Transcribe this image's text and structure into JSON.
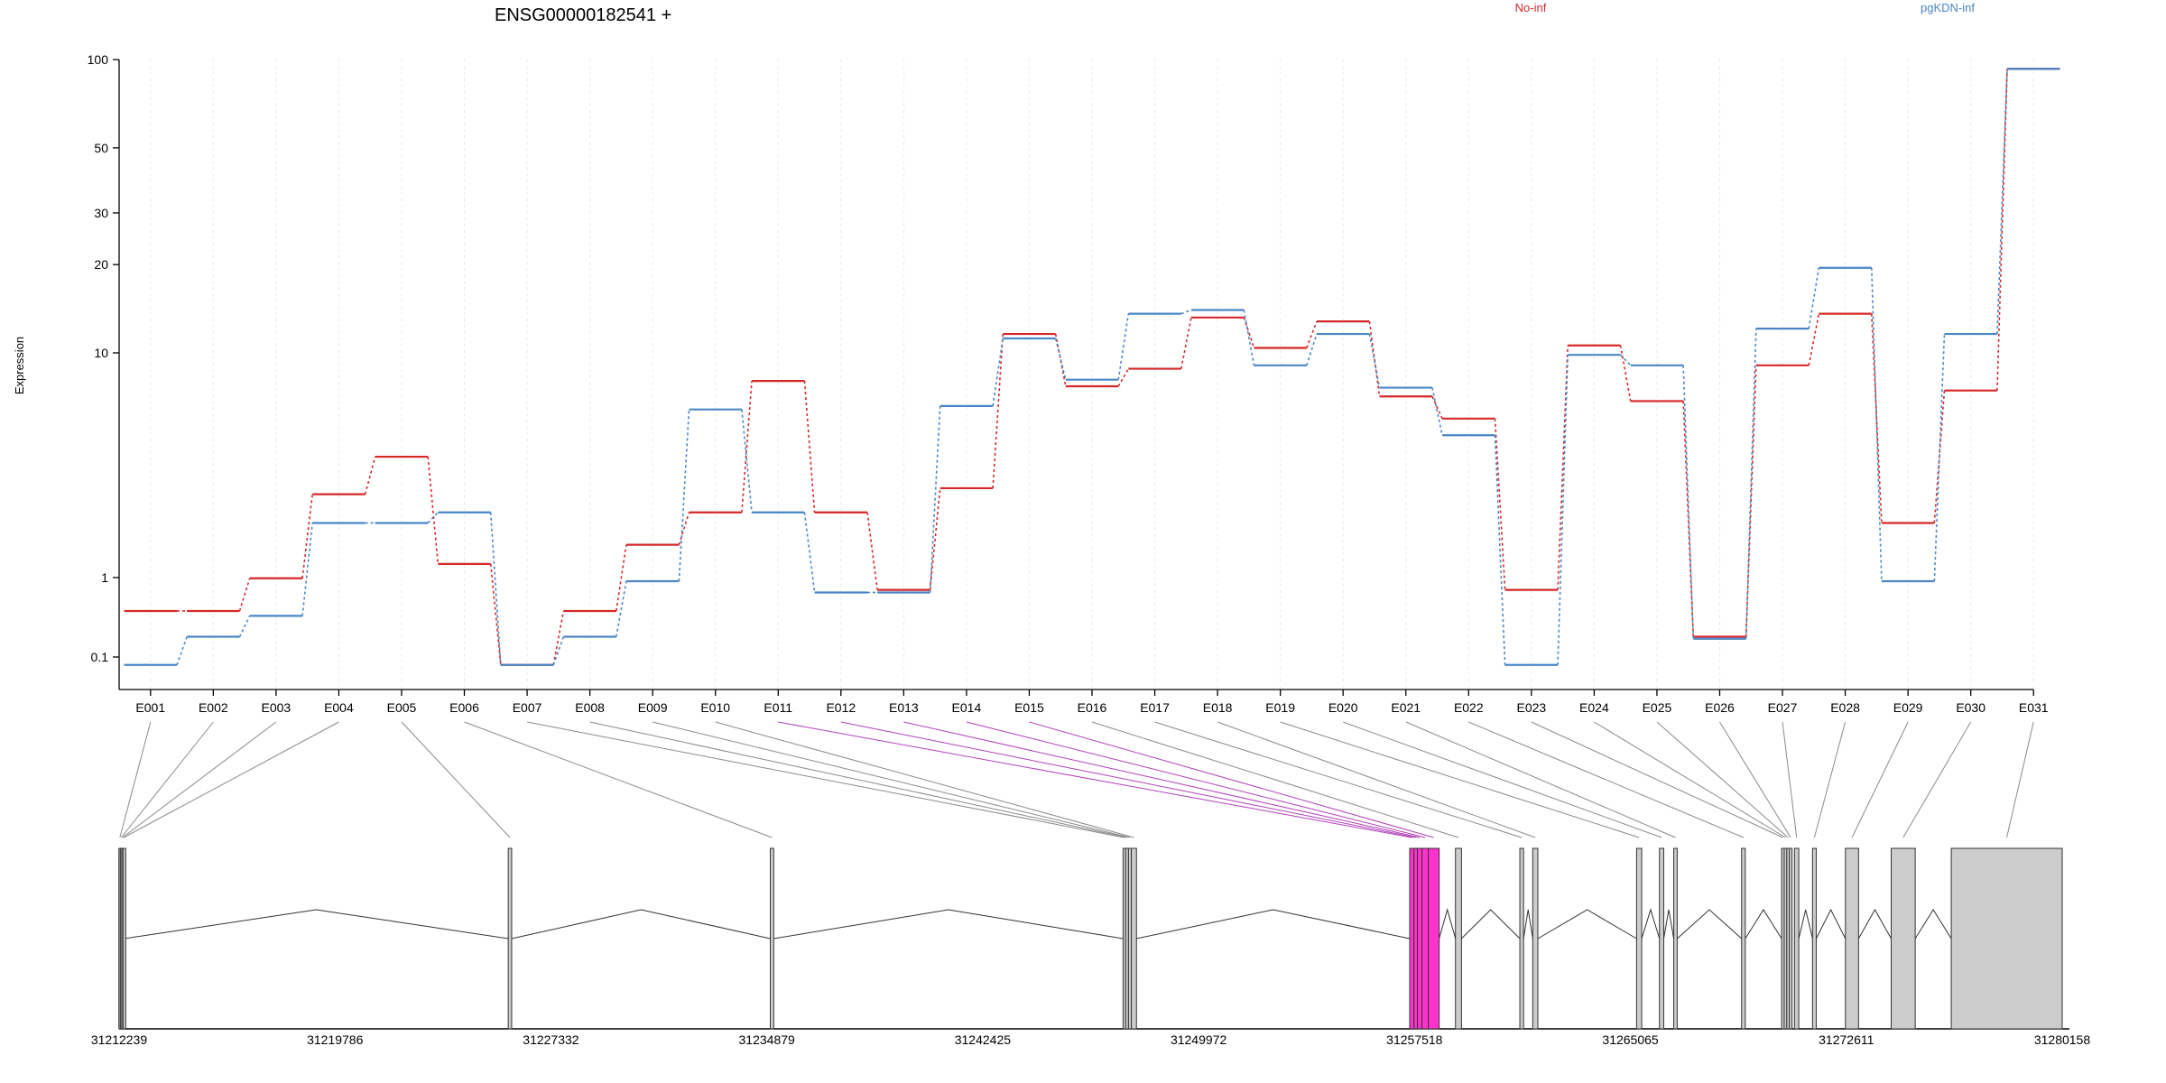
{
  "chart_data": {
    "type": "line",
    "title": "ENSG00000182541 +",
    "ylabel": "Expression",
    "yscale": "log",
    "ylim": [
      0.07,
      100
    ],
    "grid": "vertical-dashed",
    "legend_placement": "top",
    "yticks": [
      {
        "value": 0.1,
        "label": "0.1"
      },
      {
        "value": 1,
        "label": "1"
      },
      {
        "value": 10,
        "label": "10"
      },
      {
        "value": 20,
        "label": "20"
      },
      {
        "value": 30,
        "label": "30"
      },
      {
        "value": 50,
        "label": "50"
      },
      {
        "value": 100,
        "label": "100"
      }
    ],
    "categories": [
      "E001",
      "E002",
      "E003",
      "E004",
      "E005",
      "E006",
      "E007",
      "E008",
      "E009",
      "E010",
      "E011",
      "E012",
      "E013",
      "E014",
      "E015",
      "E016",
      "E017",
      "E018",
      "E019",
      "E020",
      "E021",
      "E022",
      "E023",
      "E024",
      "E025",
      "E026",
      "E027",
      "E028",
      "E029",
      "E030",
      "E031"
    ],
    "series": [
      {
        "name": "No-inf",
        "color": "#d62728",
        "values": [
          0.38,
          0.38,
          0.98,
          2.35,
          3.45,
          1.15,
          0.08,
          0.38,
          1.4,
          1.95,
          7.5,
          1.95,
          0.7,
          2.5,
          11.6,
          7.1,
          8.5,
          13.2,
          10.4,
          12.8,
          6.4,
          5.1,
          0.7,
          10.6,
          6.1,
          0.18,
          8.8,
          13.6,
          1.75,
          6.8,
          93
        ]
      },
      {
        "name": "pgKDN-inf",
        "color": "#4a86c5",
        "values": [
          0.08,
          0.18,
          0.33,
          1.75,
          1.75,
          1.95,
          0.08,
          0.18,
          0.9,
          5.6,
          1.95,
          0.65,
          0.65,
          5.8,
          11.2,
          7.6,
          13.6,
          14.0,
          8.8,
          11.6,
          7.0,
          4.3,
          0.08,
          9.8,
          8.8,
          0.17,
          12.1,
          19.5,
          0.9,
          11.6,
          93
        ]
      }
    ],
    "gene_model": {
      "coord_labels": [
        "31212239",
        "31219786",
        "31227332",
        "31234879",
        "31242425",
        "31249972",
        "31257518",
        "31265065",
        "31272611",
        "31280158"
      ],
      "coord_range": [
        31212239,
        31280158
      ],
      "highlight_color": "#ff33cc",
      "exons": [
        {
          "id": "E001",
          "start": 31212239,
          "end": 31212290
        },
        {
          "id": "E002",
          "start": 31212290,
          "end": 31212335
        },
        {
          "id": "E003",
          "start": 31212335,
          "end": 31212375
        },
        {
          "id": "E004",
          "start": 31212375,
          "end": 31212420
        },
        {
          "id": "E005",
          "start": 31225840,
          "end": 31225960
        },
        {
          "id": "E006",
          "start": 31235000,
          "end": 31235120
        },
        {
          "id": "E007",
          "start": 31247330,
          "end": 31247420
        },
        {
          "id": "E008",
          "start": 31247420,
          "end": 31247520
        },
        {
          "id": "E009",
          "start": 31247520,
          "end": 31247620
        },
        {
          "id": "E010",
          "start": 31247620,
          "end": 31247800
        },
        {
          "id": "E011",
          "start": 31257350,
          "end": 31257500,
          "highlight": true
        },
        {
          "id": "E012",
          "start": 31257500,
          "end": 31257620,
          "highlight": true
        },
        {
          "id": "E013",
          "start": 31257620,
          "end": 31257780,
          "highlight": true
        },
        {
          "id": "E014",
          "start": 31257780,
          "end": 31258000,
          "highlight": true
        },
        {
          "id": "E015",
          "start": 31258000,
          "end": 31258380,
          "highlight": true
        },
        {
          "id": "E016",
          "start": 31258950,
          "end": 31259160
        },
        {
          "id": "E017",
          "start": 31261200,
          "end": 31261330
        },
        {
          "id": "E018",
          "start": 31261650,
          "end": 31261830
        },
        {
          "id": "E019",
          "start": 31265280,
          "end": 31265460
        },
        {
          "id": "E020",
          "start": 31266080,
          "end": 31266230
        },
        {
          "id": "E021",
          "start": 31266580,
          "end": 31266700
        },
        {
          "id": "E022",
          "start": 31268950,
          "end": 31269080
        },
        {
          "id": "E023",
          "start": 31270350,
          "end": 31270440
        },
        {
          "id": "E024",
          "start": 31270440,
          "end": 31270530
        },
        {
          "id": "E025",
          "start": 31270530,
          "end": 31270620
        },
        {
          "id": "E026",
          "start": 31270620,
          "end": 31270710
        },
        {
          "id": "E027",
          "start": 31270800,
          "end": 31270950
        },
        {
          "id": "E028",
          "start": 31271430,
          "end": 31271560
        },
        {
          "id": "E029",
          "start": 31272580,
          "end": 31273040
        },
        {
          "id": "E030",
          "start": 31274180,
          "end": 31275020
        },
        {
          "id": "E031",
          "start": 31276280,
          "end": 31280158
        }
      ]
    }
  }
}
